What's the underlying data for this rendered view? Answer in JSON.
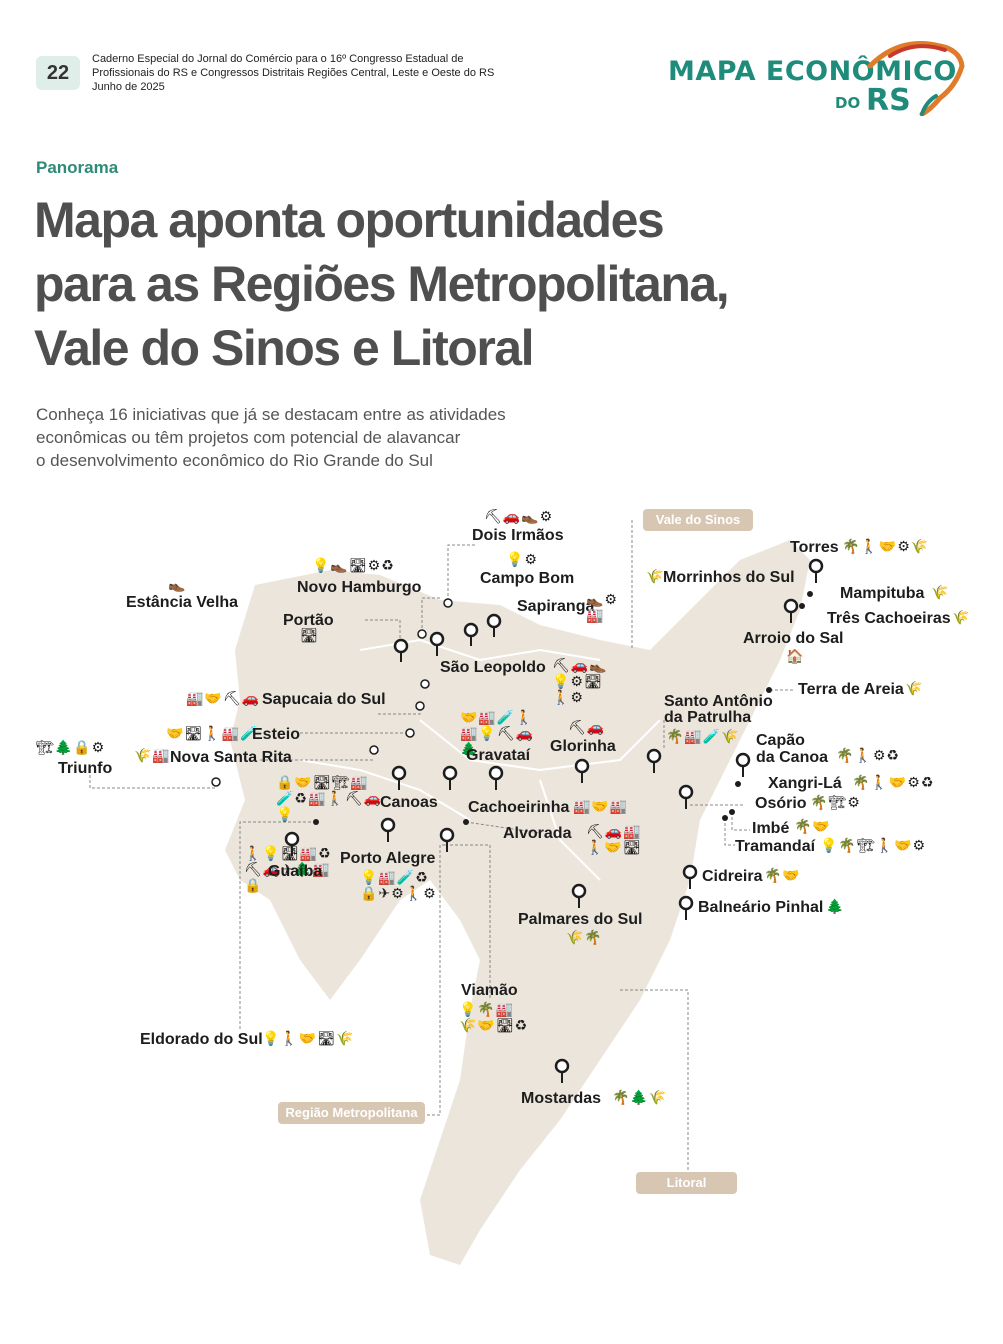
{
  "header": {
    "page_number": "22",
    "line1": "Caderno Especial do Jornal do Comércio para o 16º Congresso Estadual de",
    "line2": "Profissionais do RS e Congressos Distritais Regiões Central, Leste e Oeste do RS",
    "line3": "Junho de 2025"
  },
  "logo": {
    "line1": "MAPA ECONÔMICO",
    "do": "DO",
    "rs": "RS"
  },
  "section_label": "Panorama",
  "title_lines": [
    "Mapa aponta oportunidades",
    "para as Regiões Metropolitana,",
    "Vale do Sinos e Litoral"
  ],
  "subtitle_lines": [
    "Conheça 16 iniciativas que já se destacam entre as atividades",
    "econômicas ou têm projetos com potencial de alavancar",
    "o desenvolvimento econômico do Rio Grande do Sul"
  ],
  "colors": {
    "accent": "#1f8b7a",
    "map_fill": "#ece5dc",
    "region_tag": "#d7c6b2",
    "title": "#4f4f4f"
  },
  "regions": {
    "vale": "Vale do Sinos",
    "metro": "Região Metropolitana",
    "litoral": "Litoral"
  },
  "cities": {
    "dois_irmaos": {
      "name": "Dois Irmãos",
      "icons": "⛏🚗👞⚙"
    },
    "campo_bom": {
      "name": "Campo Bom",
      "icons": "💡⚙"
    },
    "novo_hamburgo": {
      "name": "Novo Hamburgo",
      "icons": "💡👞🛣⚙♻"
    },
    "estancia_velha": {
      "name": "Estância Velha",
      "icons": "👞"
    },
    "sapiranga": {
      "name": "Sapiranga",
      "icons": "👞⚙🏭"
    },
    "portao": {
      "name": "Portão",
      "icons": "🛣"
    },
    "sao_leopoldo": {
      "name": "São Leopoldo",
      "icons": "⛏🚗👞💡⚙🛣🚶⚙"
    },
    "sapucaia": {
      "name": "Sapucaia do Sul",
      "icons": "🏭🤝⛏🚗"
    },
    "esteio": {
      "name": "Esteio",
      "icons": "🤝🛣🚶🏭🧪"
    },
    "nova_santa_rita": {
      "name": "Nova Santa Rita",
      "icons": "🌾🏭"
    },
    "triunfo": {
      "name": "Triunfo",
      "icons": "🏗🌲🔒⚙"
    },
    "canoas": {
      "name": "Canoas",
      "icons": "🔒🤝🛣🏗🏭🧪♻🏭🚶⛏🚗💡"
    },
    "gravatai": {
      "name": "Gravataí",
      "icons": "🤝🏭🧪🚶🏭💡⛏🚗🌲"
    },
    "glorinha": {
      "name": "Glorinha",
      "icons": "⛏🚗"
    },
    "cachoeirinha": {
      "name": "Cachoeirinha",
      "icons": "🏭🤝🏭"
    },
    "alvorada": {
      "name": "Alvorada",
      "icons": "⛏🚗🏭🚶🤝🛣"
    },
    "guaiba": {
      "name": "Guaíba",
      "icons": "🚶💡🛣🏭♻⛏🚗✈🌲🏭🔒"
    },
    "porto_alegre": {
      "name": "Porto Alegre",
      "icons": "💡🏭🧪♻🔒✈⚙🚶⚙"
    },
    "eldorado": {
      "name": "Eldorado do Sul",
      "icons": "💡🚶🤝🛣🌾"
    },
    "viamao": {
      "name": "Viamão",
      "icons": "💡🌴🏭🌾🤝🛣♻"
    },
    "palmares": {
      "name": "Palmares do Sul",
      "icons": "🌾🌴"
    },
    "mostardas": {
      "name": "Mostardas",
      "icons": "🌴🌲🌾"
    },
    "torres": {
      "name": "Torres",
      "icons": "🌴🚶🤝⚙🌾"
    },
    "morrinhos": {
      "name": "Morrinhos do Sul",
      "icons": "🌾"
    },
    "mampituba": {
      "name": "Mampituba",
      "icons": "🌾"
    },
    "tres_cachoeiras": {
      "name": "Três Cachoeiras",
      "icons": "🌾"
    },
    "arroio_do_sal": {
      "name": "Arroio do Sal",
      "icons": "🏠"
    },
    "terra_de_areia": {
      "name": "Terra de Areia",
      "icons": "🌾"
    },
    "santo_antonio": {
      "name": "Santo Antônio da Patrulha",
      "line1": "Santo Antônio",
      "line2": "da Patrulha",
      "icons": "🌴🏭🧪🌾"
    },
    "capao": {
      "name": "Capão da Canoa",
      "line1": "Capão",
      "line2": "da Canoa",
      "icons": "🌴🚶⚙♻"
    },
    "xangri_la": {
      "name": "Xangri-Lá",
      "icons": "🌴🚶🤝⚙♻"
    },
    "osorio": {
      "name": "Osório",
      "icons": "🌴🏗⚙"
    },
    "imbe": {
      "name": "Imbé",
      "icons": "🌴🤝"
    },
    "tramandai": {
      "name": "Tramandaí",
      "icons": "💡🌴🏗🚶🤝⚙"
    },
    "cidreira": {
      "name": "Cidreira",
      "icons": "🌴🤝"
    },
    "balneario_pinhal": {
      "name": "Balneário Pinhal",
      "icons": "🌲"
    }
  }
}
